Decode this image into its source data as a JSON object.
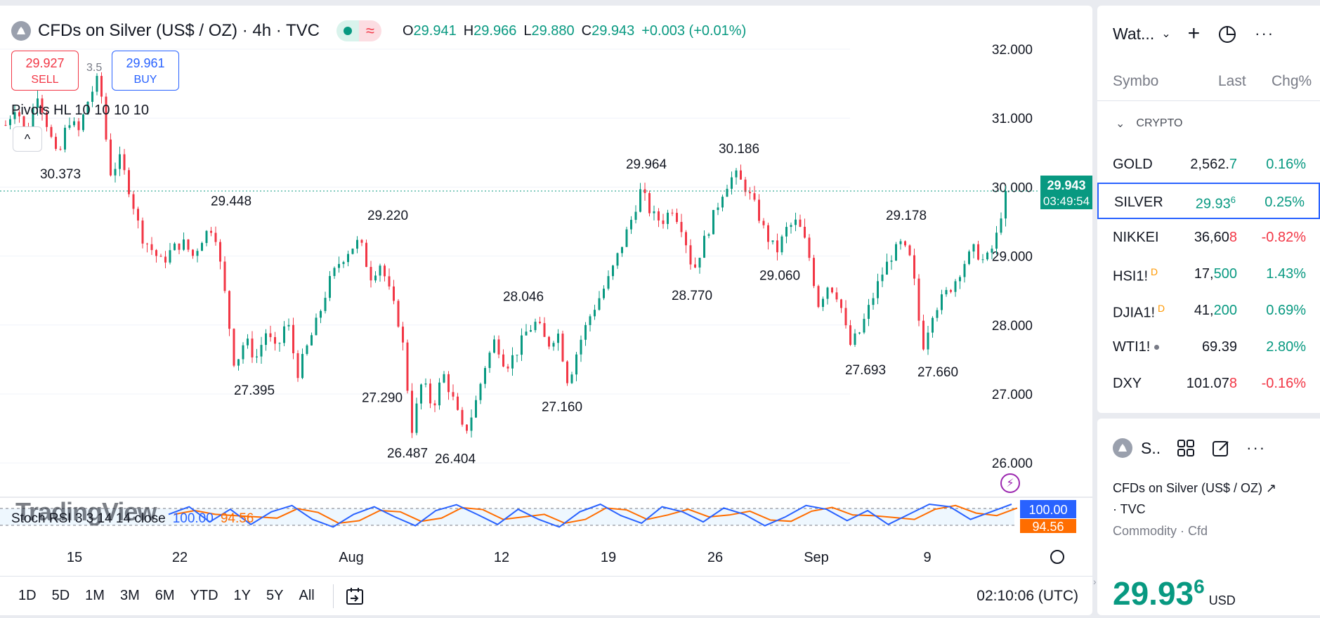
{
  "header": {
    "title": "CFDs on Silver (US$ / OZ) · 4h · TVC",
    "ohlc": [
      {
        "k": "O",
        "v": "29.941"
      },
      {
        "k": "H",
        "v": "29.966"
      },
      {
        "k": "L",
        "v": "29.880"
      },
      {
        "k": "C",
        "v": "29.943"
      }
    ],
    "change": "+0.003 (+0.01%)"
  },
  "trade": {
    "sell_price": "29.927",
    "sell_label": "SELL",
    "buy_price": "29.961",
    "buy_label": "BUY",
    "spread": "3.5"
  },
  "pivots_legend": "Pivots HL 10 10 10 10",
  "stoch": {
    "name": "Stoch RSI 3 3 14 14 close",
    "k": "100.00",
    "d": "94.56"
  },
  "watermark": "TradingView",
  "colors": {
    "up": "#089981",
    "down": "#f23645",
    "k_line": "#2962ff",
    "d_line": "#ff6d00",
    "brand": "#2962ff"
  },
  "chart_data": {
    "type": "candlestick",
    "ylim": [
      25.5,
      32.5
    ],
    "yticks": [
      "32.000",
      "31.000",
      "30.000",
      "29.000",
      "28.000",
      "27.000",
      "26.000"
    ],
    "xticks": [
      "15",
      "22",
      "Aug",
      "12",
      "19",
      "26",
      "Sep",
      "9"
    ],
    "pivot_labels": [
      {
        "text": "30.373",
        "value": 30.373
      },
      {
        "text": "29.448",
        "value": 29.448
      },
      {
        "text": "27.395",
        "value": 27.395
      },
      {
        "text": "27.290",
        "value": 27.29
      },
      {
        "text": "29.220",
        "value": 29.22
      },
      {
        "text": "26.487",
        "value": 26.487
      },
      {
        "text": "26.404",
        "value": 26.404
      },
      {
        "text": "28.046",
        "value": 28.046
      },
      {
        "text": "27.160",
        "value": 27.16
      },
      {
        "text": "29.964",
        "value": 29.964
      },
      {
        "text": "28.770",
        "value": 28.77
      },
      {
        "text": "30.186",
        "value": 30.186
      },
      {
        "text": "29.060",
        "value": 29.06
      },
      {
        "text": "27.693",
        "value": 27.693
      },
      {
        "text": "29.178",
        "value": 29.178
      },
      {
        "text": "27.660",
        "value": 27.66
      }
    ],
    "price_path": [
      30.9,
      31.2,
      30.7,
      31.4,
      30.9,
      30.373,
      31.0,
      30.8,
      31.3,
      31.6,
      30.2,
      30.4,
      29.9,
      29.3,
      29.1,
      28.9,
      29.1,
      29.2,
      29.0,
      29.3,
      29.448,
      28.5,
      27.395,
      27.8,
      27.5,
      27.9,
      27.6,
      28.1,
      27.29,
      27.7,
      28.1,
      28.6,
      28.9,
      29.1,
      29.22,
      28.7,
      28.9,
      28.4,
      27.9,
      26.487,
      27.2,
      26.8,
      27.3,
      26.9,
      26.404,
      26.8,
      27.4,
      27.8,
      27.4,
      27.6,
      27.9,
      28.046,
      27.7,
      27.9,
      27.16,
      27.7,
      28.1,
      28.4,
      28.7,
      29.1,
      29.5,
      29.964,
      29.6,
      29.5,
      29.7,
      29.4,
      28.77,
      29.2,
      29.6,
      30.0,
      30.186,
      30.0,
      29.7,
      29.3,
      29.06,
      29.4,
      29.5,
      29.1,
      28.3,
      28.6,
      28.4,
      27.693,
      27.9,
      28.3,
      28.7,
      29.0,
      29.178,
      28.9,
      27.66,
      28.2,
      28.4,
      28.6,
      28.9,
      29.1,
      28.9,
      29.2,
      29.943
    ],
    "last_price": "29.943",
    "countdown": "03:49:54",
    "stoch_k_path": [
      60,
      90,
      30,
      80,
      20,
      70,
      95,
      40,
      10,
      60,
      90,
      50,
      15,
      75,
      98,
      60,
      20,
      80,
      40,
      10,
      70,
      100,
      55,
      25,
      90,
      70,
      30,
      85,
      60,
      15,
      50,
      95,
      80,
      35,
      75,
      20,
      60,
      100,
      90,
      40,
      70,
      100
    ],
    "stoch_k": "100.00",
    "stoch_d": "94.56"
  },
  "bottom": {
    "ranges": [
      "1D",
      "5D",
      "1M",
      "3M",
      "6M",
      "YTD",
      "1Y",
      "5Y",
      "All"
    ],
    "clock": "02:10:06 (UTC)"
  },
  "watchlist": {
    "title": "Wat...",
    "col_symbol": "Symbo",
    "col_last": "Last",
    "col_chg": "Chg%",
    "section": "CRYPTO",
    "rows": [
      {
        "sym": "GOLD",
        "last_a": "2,562.",
        "last_b": "7",
        "dir": "up",
        "chg": "0.16%",
        "badge": "",
        "dot": false,
        "sup": ""
      },
      {
        "sym": "SILVER",
        "last_a": "29.93",
        "last_b": "6",
        "dir": "up",
        "chg": "0.25%",
        "badge": "",
        "dot": false,
        "sup": "sup"
      },
      {
        "sym": "NIKKEI",
        "last_a": "36,60",
        "last_b": "8",
        "dir": "dn",
        "chg": "-0.82%",
        "badge": "",
        "dot": false,
        "sup": ""
      },
      {
        "sym": "HSI1!",
        "last_a": "17,",
        "last_b": "500",
        "dir": "up",
        "chg": "1.43%",
        "badge": "D",
        "dot": false,
        "sup": ""
      },
      {
        "sym": "DJIA1!",
        "last_a": "41,",
        "last_b": "200",
        "dir": "up",
        "chg": "0.69%",
        "badge": "D",
        "dot": false,
        "sup": ""
      },
      {
        "sym": "WTI1!",
        "last_a": "69.39",
        "last_b": "",
        "dir": "up",
        "chg": "2.80%",
        "badge": "",
        "dot": true,
        "sup": ""
      },
      {
        "sym": "DXY",
        "last_a": "101.07",
        "last_b": "8",
        "dir": "dn",
        "chg": "-0.16%",
        "badge": "",
        "dot": false,
        "sup": ""
      }
    ]
  },
  "details": {
    "short_name": "S..",
    "full_name": "CFDs on Silver (US$ / OZ)",
    "exchange": "· TVC",
    "meta": "Commodity · Cfd",
    "price_main": "29.93",
    "price_sup": "6",
    "currency": "USD"
  }
}
